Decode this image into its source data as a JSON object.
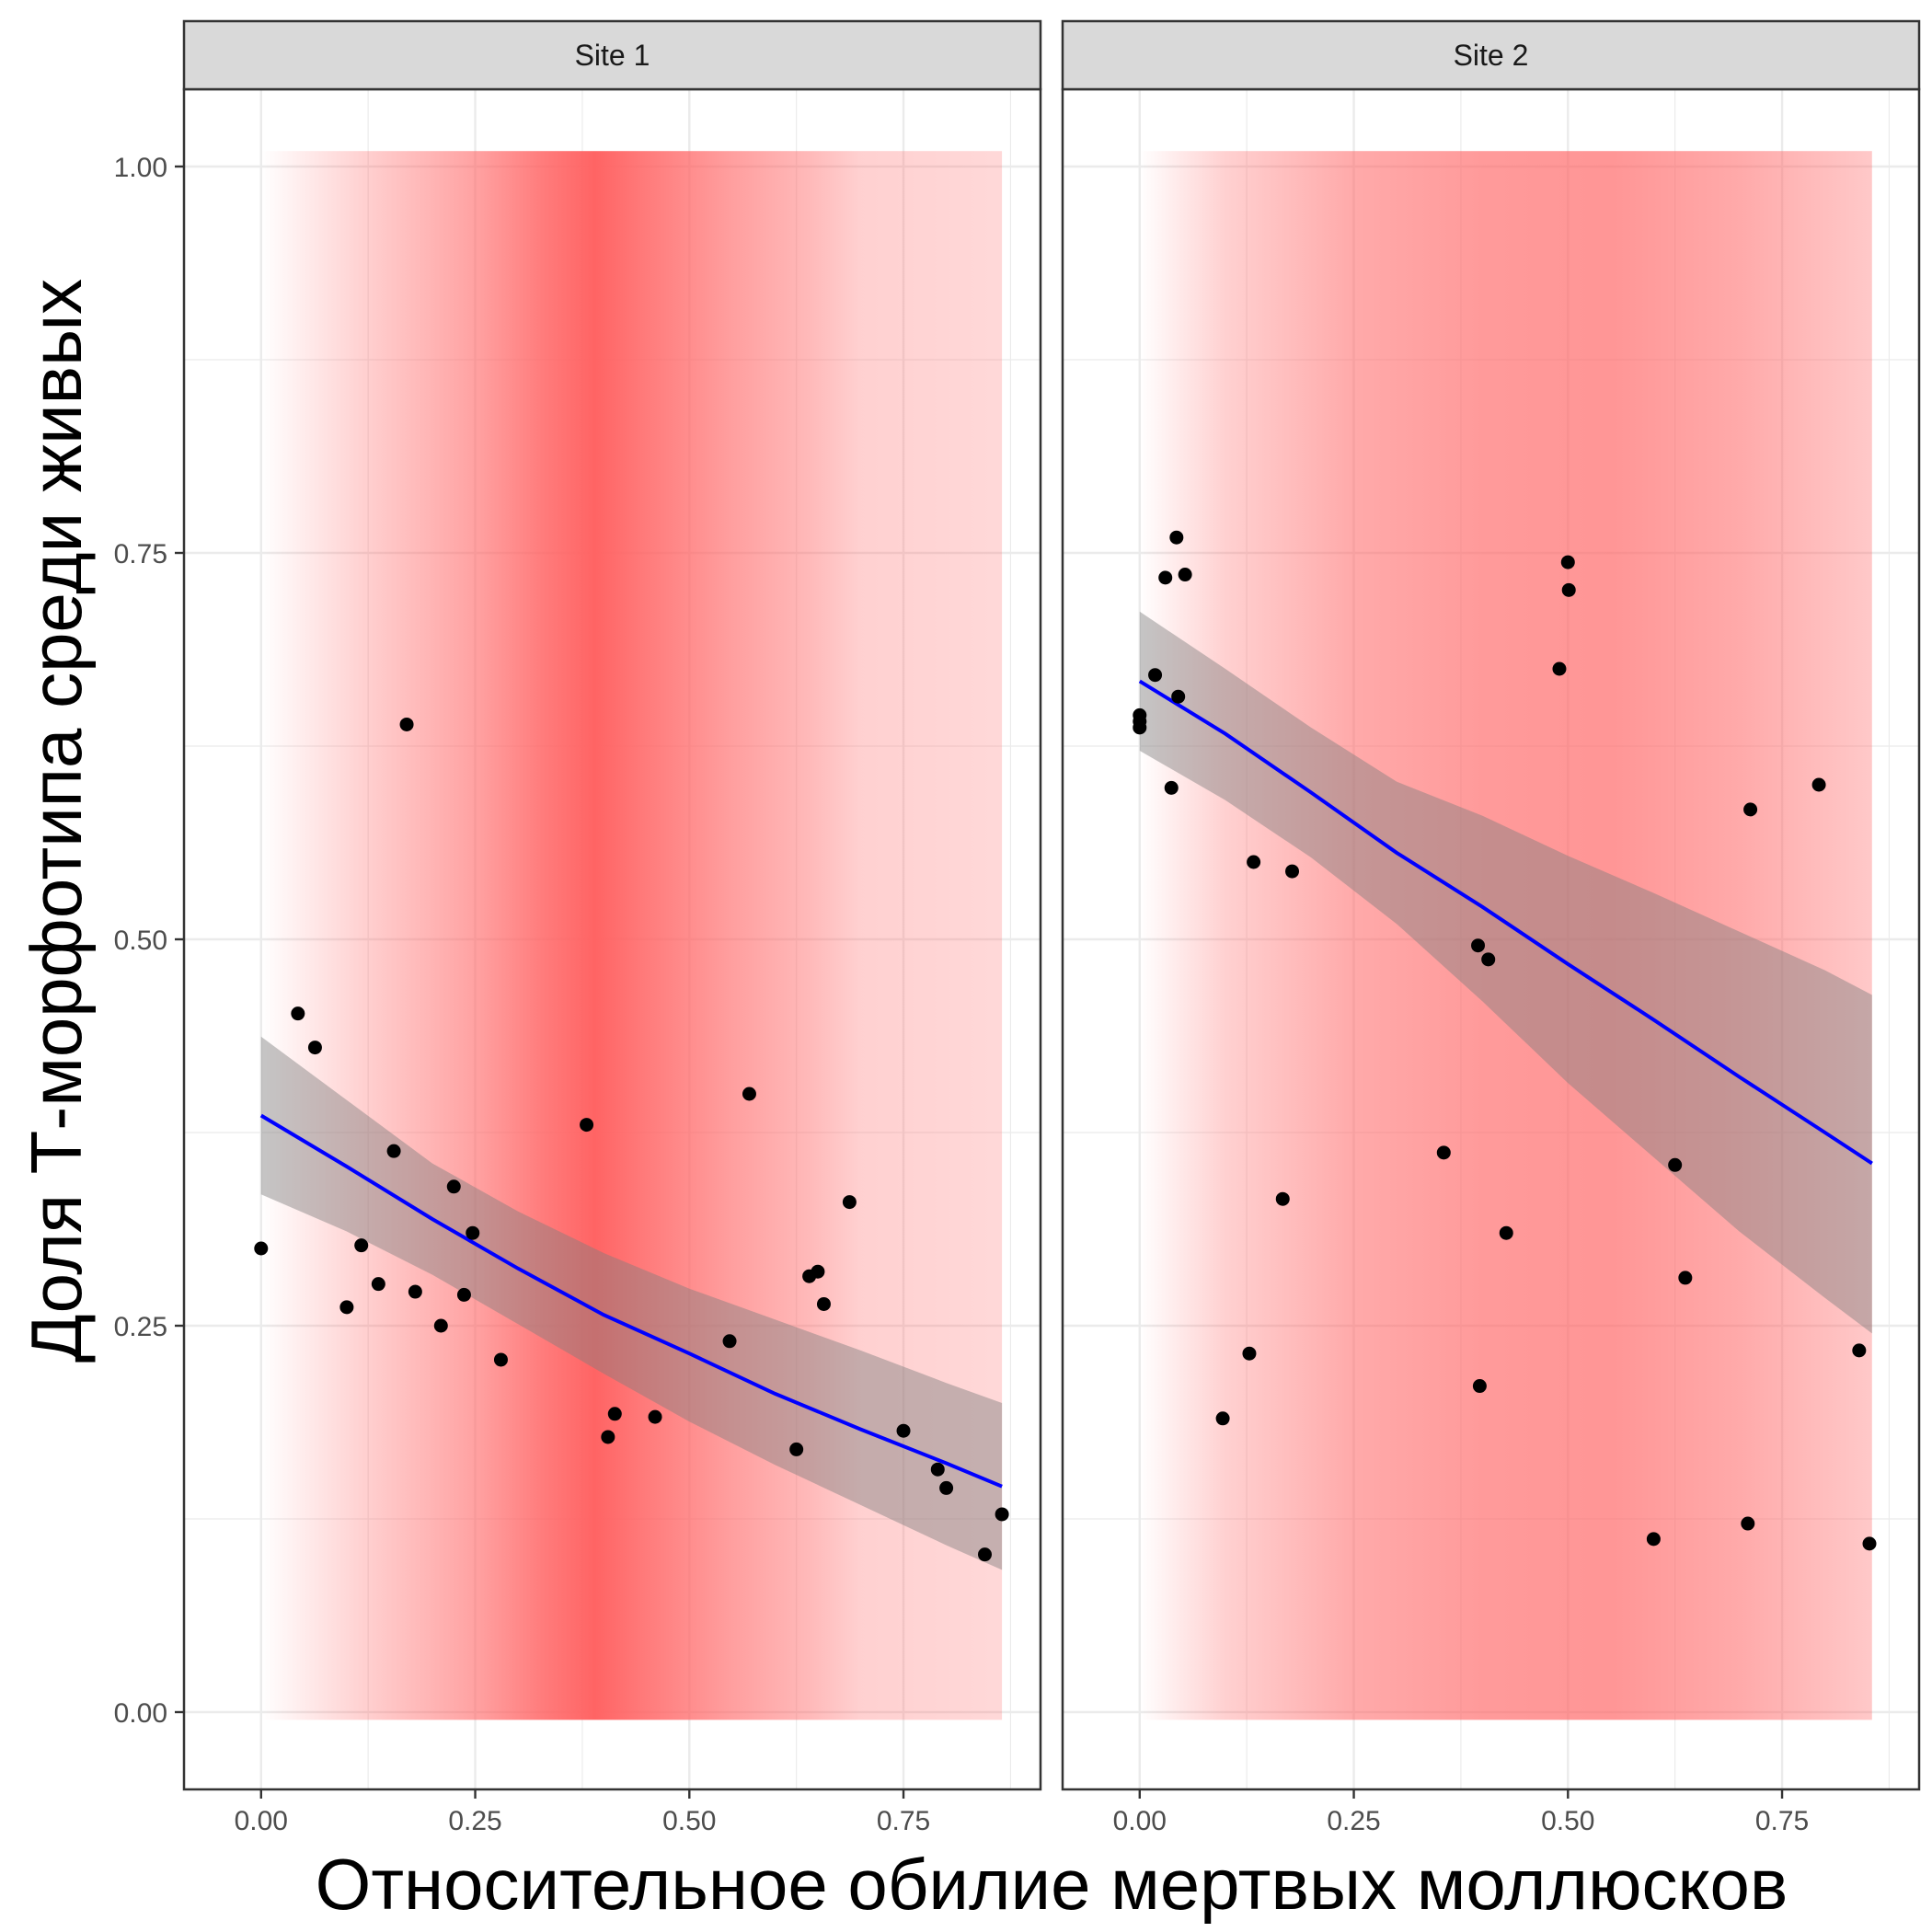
{
  "chart_data": {
    "type": "scatter",
    "xlabel": "Относительное обилие мертвых моллюсков",
    "ylabel": "Доля Т-морфотипа среди живых",
    "xlim": [
      -0.09,
      0.91
    ],
    "ylim": [
      -0.05,
      1.05
    ],
    "x_ticks": [
      0,
      0.25,
      0.5,
      0.75
    ],
    "x_tick_labels": [
      "0.00",
      "0.25",
      "0.50",
      "0.75"
    ],
    "y_ticks": [
      0,
      0.25,
      0.5,
      0.75,
      1.0
    ],
    "y_tick_labels": [
      "0.00",
      "0.25",
      "0.50",
      "0.75",
      "1.00"
    ],
    "grid": true,
    "colors": {
      "points": "#000000",
      "fit_line": "#0000ff",
      "confidence_band": "#7f7f7f",
      "background_gradient": "#ff6464",
      "strip_fill": "#d9d9d9",
      "grid": "#ebebeb"
    },
    "panels": [
      {
        "title": "Site 1",
        "background_gradient": {
          "x_range": [
            0,
            0.865
          ],
          "stops": [
            {
              "x": 0.0,
              "opacity": 0.0
            },
            {
              "x": 0.12,
              "opacity": 0.3
            },
            {
              "x": 0.25,
              "opacity": 0.6
            },
            {
              "x": 0.33,
              "opacity": 0.85
            },
            {
              "x": 0.39,
              "opacity": 1.0
            },
            {
              "x": 0.45,
              "opacity": 0.85
            },
            {
              "x": 0.55,
              "opacity": 0.62
            },
            {
              "x": 0.64,
              "opacity": 0.45
            },
            {
              "x": 0.7,
              "opacity": 0.3
            },
            {
              "x": 0.865,
              "opacity": 0.25
            }
          ]
        },
        "points": [
          {
            "x": 0.0,
            "y": 0.3
          },
          {
            "x": 0.043,
            "y": 0.452
          },
          {
            "x": 0.063,
            "y": 0.43
          },
          {
            "x": 0.1,
            "y": 0.262
          },
          {
            "x": 0.117,
            "y": 0.302
          },
          {
            "x": 0.137,
            "y": 0.277
          },
          {
            "x": 0.155,
            "y": 0.363
          },
          {
            "x": 0.17,
            "y": 0.639
          },
          {
            "x": 0.18,
            "y": 0.272
          },
          {
            "x": 0.21,
            "y": 0.25
          },
          {
            "x": 0.225,
            "y": 0.34
          },
          {
            "x": 0.237,
            "y": 0.27
          },
          {
            "x": 0.247,
            "y": 0.31
          },
          {
            "x": 0.28,
            "y": 0.228
          },
          {
            "x": 0.38,
            "y": 0.38
          },
          {
            "x": 0.405,
            "y": 0.178
          },
          {
            "x": 0.413,
            "y": 0.193
          },
          {
            "x": 0.46,
            "y": 0.191
          },
          {
            "x": 0.547,
            "y": 0.24
          },
          {
            "x": 0.57,
            "y": 0.4
          },
          {
            "x": 0.625,
            "y": 0.17
          },
          {
            "x": 0.64,
            "y": 0.282
          },
          {
            "x": 0.65,
            "y": 0.285
          },
          {
            "x": 0.657,
            "y": 0.264
          },
          {
            "x": 0.687,
            "y": 0.33
          },
          {
            "x": 0.75,
            "y": 0.182
          },
          {
            "x": 0.79,
            "y": 0.157
          },
          {
            "x": 0.8,
            "y": 0.145
          },
          {
            "x": 0.845,
            "y": 0.102
          },
          {
            "x": 0.865,
            "y": 0.128
          }
        ],
        "fit": {
          "x": [
            0,
            0.1,
            0.2,
            0.3,
            0.4,
            0.5,
            0.6,
            0.7,
            0.8,
            0.865
          ],
          "y": [
            0.386,
            0.353,
            0.319,
            0.287,
            0.257,
            0.232,
            0.206,
            0.183,
            0.161,
            0.146
          ],
          "lower": [
            0.335,
            0.311,
            0.283,
            0.251,
            0.219,
            0.188,
            0.16,
            0.134,
            0.108,
            0.092
          ],
          "upper": [
            0.437,
            0.396,
            0.355,
            0.324,
            0.297,
            0.274,
            0.254,
            0.234,
            0.213,
            0.2
          ]
        }
      },
      {
        "title": "Site 2",
        "background_gradient": {
          "x_range": [
            0,
            0.855
          ],
          "stops": [
            {
              "x": 0.0,
              "opacity": 0.0
            },
            {
              "x": 0.1,
              "opacity": 0.3
            },
            {
              "x": 0.25,
              "opacity": 0.55
            },
            {
              "x": 0.4,
              "opacity": 0.65
            },
            {
              "x": 0.55,
              "opacity": 0.68
            },
            {
              "x": 0.7,
              "opacity": 0.55
            },
            {
              "x": 0.855,
              "opacity": 0.35
            }
          ]
        },
        "points": [
          {
            "x": 0.0,
            "y": 0.637
          },
          {
            "x": 0.0,
            "y": 0.641
          },
          {
            "x": 0.0,
            "y": 0.645
          },
          {
            "x": 0.018,
            "y": 0.671
          },
          {
            "x": 0.03,
            "y": 0.734
          },
          {
            "x": 0.037,
            "y": 0.598
          },
          {
            "x": 0.043,
            "y": 0.76
          },
          {
            "x": 0.045,
            "y": 0.657
          },
          {
            "x": 0.053,
            "y": 0.736
          },
          {
            "x": 0.097,
            "y": 0.19
          },
          {
            "x": 0.128,
            "y": 0.232
          },
          {
            "x": 0.133,
            "y": 0.55
          },
          {
            "x": 0.167,
            "y": 0.332
          },
          {
            "x": 0.178,
            "y": 0.544
          },
          {
            "x": 0.355,
            "y": 0.362
          },
          {
            "x": 0.395,
            "y": 0.496
          },
          {
            "x": 0.397,
            "y": 0.211
          },
          {
            "x": 0.407,
            "y": 0.487
          },
          {
            "x": 0.428,
            "y": 0.31
          },
          {
            "x": 0.49,
            "y": 0.675
          },
          {
            "x": 0.5,
            "y": 0.744
          },
          {
            "x": 0.501,
            "y": 0.726
          },
          {
            "x": 0.6,
            "y": 0.112
          },
          {
            "x": 0.625,
            "y": 0.354
          },
          {
            "x": 0.637,
            "y": 0.281
          },
          {
            "x": 0.71,
            "y": 0.122
          },
          {
            "x": 0.713,
            "y": 0.584
          },
          {
            "x": 0.793,
            "y": 0.6
          },
          {
            "x": 0.84,
            "y": 0.234
          },
          {
            "x": 0.852,
            "y": 0.109
          }
        ],
        "fit": {
          "x": [
            0,
            0.1,
            0.2,
            0.3,
            0.4,
            0.5,
            0.6,
            0.7,
            0.8,
            0.855
          ],
          "y": [
            0.667,
            0.633,
            0.595,
            0.556,
            0.521,
            0.484,
            0.448,
            0.411,
            0.375,
            0.355
          ],
          "lower": [
            0.622,
            0.59,
            0.553,
            0.51,
            0.46,
            0.407,
            0.359,
            0.311,
            0.268,
            0.245
          ],
          "upper": [
            0.712,
            0.675,
            0.637,
            0.602,
            0.58,
            0.554,
            0.53,
            0.505,
            0.48,
            0.464
          ]
        }
      }
    ]
  }
}
